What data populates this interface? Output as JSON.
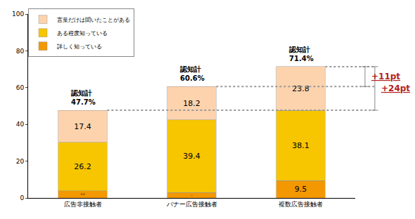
{
  "chart_data": {
    "type": "bar",
    "stacked": true,
    "data_labels": true,
    "grid": false,
    "legend": "upper left",
    "categories": [
      "広告非接触者",
      "バナー広告接触者",
      "複数広告接触者"
    ],
    "series": [
      {
        "name": "詳しく知っている",
        "color": "#f39800",
        "values": [
          4.0,
          3.0,
          9.5
        ],
        "value_labels": [
          "4.0",
          "3.0",
          "9.5"
        ]
      },
      {
        "name": "ある程度知っている",
        "color": "#f7c600",
        "values": [
          26.2,
          39.4,
          38.1
        ],
        "value_labels": [
          "26.2",
          "39.4",
          "38.1"
        ]
      },
      {
        "name": "言葉だけは聞いたことがある",
        "color": "#fdd3ad",
        "values": [
          17.4,
          18.2,
          23.8
        ],
        "value_labels": [
          "17.4",
          "18.2",
          "23.8"
        ]
      }
    ],
    "totals": {
      "label": "認知計",
      "values": [
        47.7,
        60.6,
        71.4
      ],
      "value_labels": [
        "47.7%",
        "60.6%",
        "71.4%"
      ]
    },
    "annotations": [
      "+11pt",
      "+24pt"
    ],
    "ylim": [
      0,
      100
    ],
    "yticks": [
      0,
      20,
      40,
      60,
      80,
      100
    ]
  }
}
